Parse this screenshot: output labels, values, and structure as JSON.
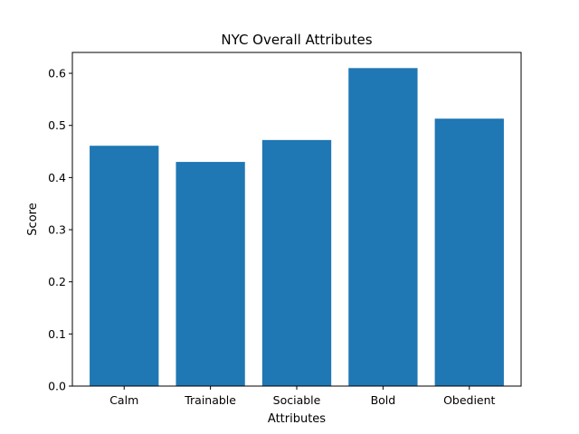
{
  "chart_data": {
    "type": "bar",
    "title": "NYC Overall Attributes",
    "xlabel": "Attributes",
    "ylabel": "Score",
    "categories": [
      "Calm",
      "Trainable",
      "Sociable",
      "Bold",
      "Obedient"
    ],
    "values": [
      0.461,
      0.43,
      0.472,
      0.61,
      0.513
    ],
    "ylim": [
      0,
      0.64
    ],
    "yticks": [
      0.0,
      0.1,
      0.2,
      0.3,
      0.4,
      0.5,
      0.6
    ],
    "ytick_labels": [
      "0.0",
      "0.1",
      "0.2",
      "0.3",
      "0.4",
      "0.5",
      "0.6"
    ],
    "bar_color": "#1f77b4",
    "grid": false,
    "legend": "none"
  }
}
